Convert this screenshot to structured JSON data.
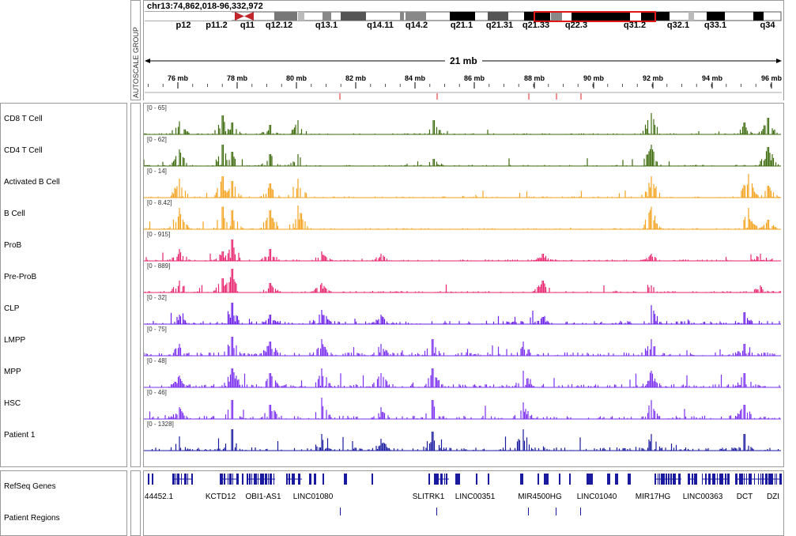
{
  "header": {
    "locus": "chr13:74,862,018-96,332,972",
    "span_label": "21 mb",
    "autoscale_label": "AUTOSCALE GROUP"
  },
  "ideogram": {
    "band_labels": [
      "p12",
      "p11.2",
      "q11",
      "q12.12",
      "q13.1",
      "q14.11",
      "q14.2",
      "q21.1",
      "q21.31",
      "q21.33",
      "q22.3",
      "q31.2",
      "q32.1",
      "q33.1",
      "q34"
    ]
  },
  "ruler": {
    "ticks": [
      "76 mb",
      "78 mb",
      "80 mb",
      "82 mb",
      "84 mb",
      "86 mb",
      "88 mb",
      "90 mb",
      "92 mb",
      "94 mb",
      "96 mb"
    ]
  },
  "tracks": [
    {
      "name": "CD8 T Cell",
      "range": "[0 - 65]",
      "color": "#3e6b0e"
    },
    {
      "name": "CD4 T Cell",
      "range": "[0 - 62]",
      "color": "#3e6b0e"
    },
    {
      "name": "Activated B Cell",
      "range": "[0 - 14]",
      "color": "#f4a21e"
    },
    {
      "name": "B Cell",
      "range": "[0 - 8.42]",
      "color": "#f4a21e"
    },
    {
      "name": "ProB",
      "range": "[0 - 915]",
      "color": "#e8246e"
    },
    {
      "name": "Pre-ProB",
      "range": "[0 - 889]",
      "color": "#e8246e"
    },
    {
      "name": "CLP",
      "range": "[0 - 32]",
      "color": "#6a1ee8"
    },
    {
      "name": "LMPP",
      "range": "[0 - 75]",
      "color": "#7b2ff0"
    },
    {
      "name": "MPP",
      "range": "[0 - 48]",
      "color": "#7b2ff0"
    },
    {
      "name": "HSC",
      "range": "[0 - 46]",
      "color": "#7b2ff0"
    },
    {
      "name": "Patient 1",
      "range": "[0 - 1328]",
      "color": "#1a1aa0"
    }
  ],
  "annotation_tracks": {
    "refseq": "RefSeq Genes",
    "patient_regions": "Patient Regions"
  },
  "genes": [
    "44452.1",
    "KCTD12",
    "OBI1-AS1",
    "LINC01080",
    "SLITRK1",
    "LINC00351",
    "MIR4500HG",
    "LINC01040",
    "MIR17HG",
    "LINC00363",
    "DCT",
    "DZI"
  ]
}
